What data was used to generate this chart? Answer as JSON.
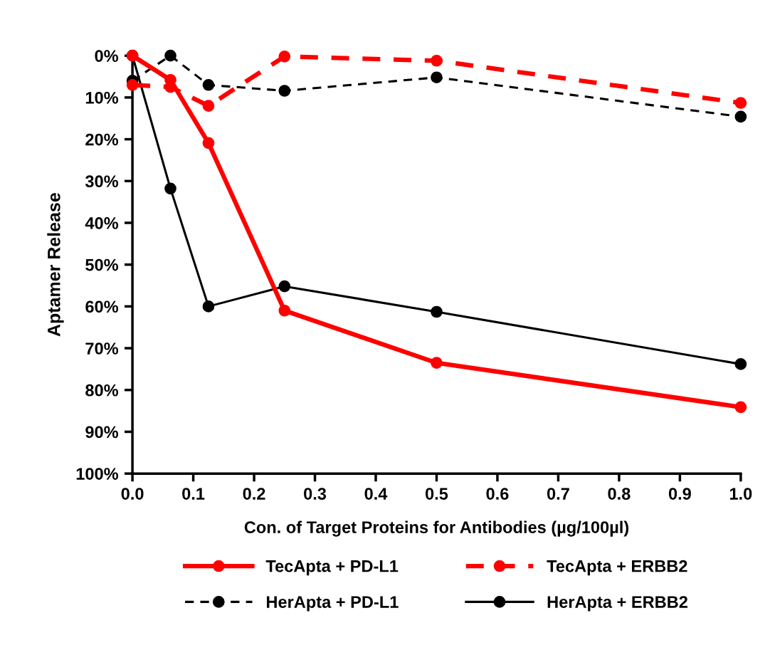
{
  "chart_data": {
    "type": "line",
    "xlabel": "Con. of Target Proteins for Antibodies (µg/100µl)",
    "ylabel": "Aptamer Release",
    "x": [
      0,
      0.0625,
      0.125,
      0.25,
      0.5,
      1.0
    ],
    "xlim": [
      0,
      1.0
    ],
    "xticks": [
      {
        "value": 0,
        "label": "0.0"
      },
      0.1,
      0.2,
      0.3,
      0.4,
      0.5,
      0.6,
      0.7,
      0.8,
      0.9,
      {
        "value": 1.0,
        "label": "1.0"
      }
    ],
    "ylim": [
      100,
      0
    ],
    "yticks": [
      {
        "value": 0,
        "label": "0%"
      },
      {
        "value": 10,
        "label": "10%"
      },
      {
        "value": 20,
        "label": "20%"
      },
      {
        "value": 30,
        "label": "30%"
      },
      {
        "value": 40,
        "label": "40%"
      },
      {
        "value": 50,
        "label": "50%"
      },
      {
        "value": 60,
        "label": "60%"
      },
      {
        "value": 70,
        "label": "70%"
      },
      {
        "value": 80,
        "label": "80%"
      },
      {
        "value": 90,
        "label": "90%"
      },
      {
        "value": 100,
        "label": "100%"
      }
    ],
    "grid": false,
    "legend": "bottom",
    "marker": "circle",
    "series": [
      {
        "name": "TecApta + PD-L1",
        "color": "#ff0000",
        "line_style": "solid",
        "values": [
          0,
          5.8,
          20.9,
          61,
          73.5,
          84.1
        ]
      },
      {
        "name": "TecApta + ERBB2",
        "color": "#ff0000",
        "line_style": "dashed",
        "values": [
          7,
          7.5,
          12,
          0.2,
          1.2,
          11.3
        ]
      },
      {
        "name": "HerApta + PD-L1",
        "color": "#000000",
        "line_style": "dashed",
        "values": [
          6,
          0,
          7,
          8.4,
          5.2,
          14.6
        ]
      },
      {
        "name": "HerApta + ERBB2",
        "color": "#000000",
        "line_style": "solid",
        "values": [
          0,
          31.8,
          60,
          55.2,
          61.3,
          73.8
        ]
      }
    ]
  }
}
